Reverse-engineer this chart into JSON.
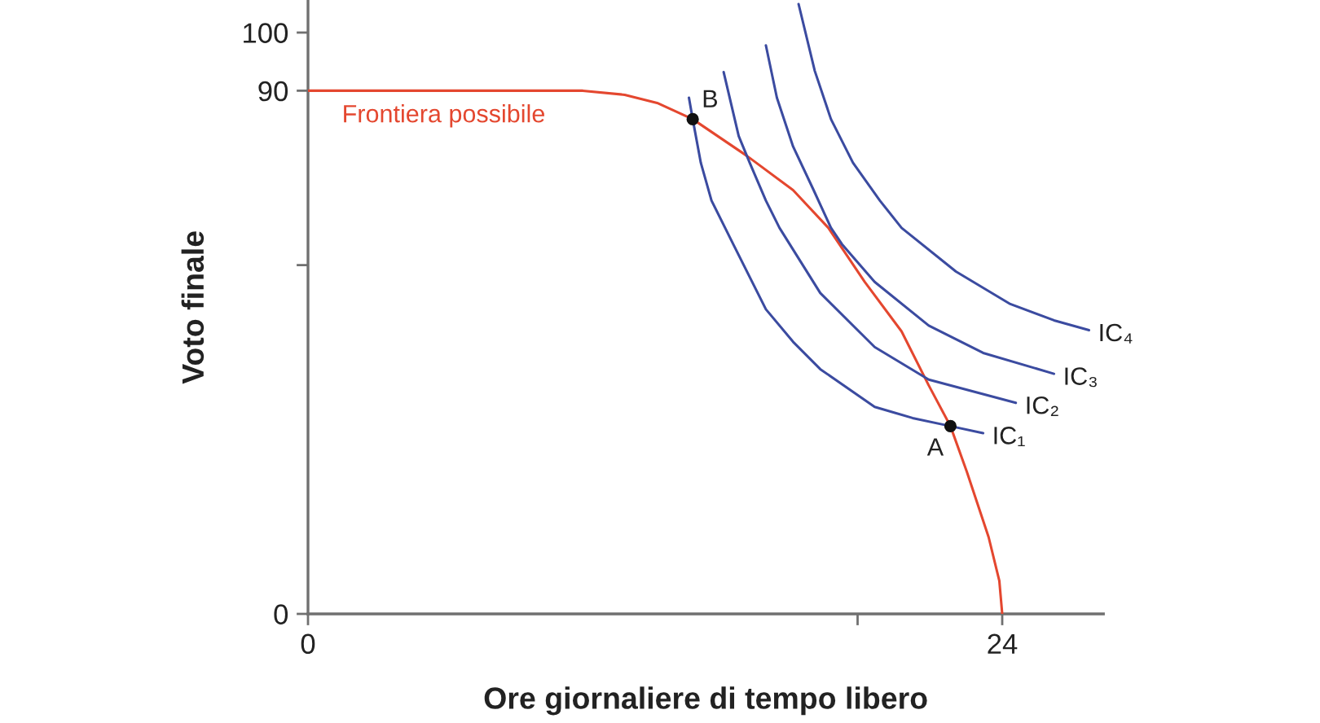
{
  "chart_data": {
    "type": "line",
    "xlabel": "Ore giornaliere di tempo libero",
    "ylabel": "Voto finale",
    "xlim": [
      0,
      27.5
    ],
    "ylim": [
      0,
      105.5
    ],
    "xticks": [
      0,
      {
        "value": 19,
        "label": null
      },
      24
    ],
    "yticks": [
      0,
      {
        "value": 60,
        "label": null
      },
      90,
      100
    ],
    "grid": false,
    "legend": false,
    "marker": "none",
    "line_style": "solid",
    "series": [
      {
        "name": "Frontiera possibile",
        "color": "#e4472f",
        "x": [
          0,
          9.5,
          10.95,
          12.07,
          13.3,
          15.17,
          16.77,
          17.99,
          19.25,
          20.52,
          21.46,
          22.21,
          22.78,
          23.53,
          23.9,
          24
        ],
        "values": [
          90,
          90,
          89.3,
          87.9,
          85.1,
          78.8,
          72.9,
          66.4,
          57.1,
          48.6,
          39.3,
          32.3,
          24.4,
          13.2,
          5.7,
          0
        ]
      },
      {
        "name": "IC₁",
        "color": "#3b4ba0",
        "x": [
          13.17,
          13.3,
          13.58,
          13.95,
          14.42,
          14.7,
          15.83,
          16.77,
          17.71,
          19.59,
          20.9,
          22.21,
          23.34
        ],
        "values": [
          88.8,
          85.1,
          77.6,
          71.1,
          66.4,
          63.6,
          52.4,
          46.8,
          42.1,
          35.6,
          33.7,
          32.3,
          31.1
        ]
      },
      {
        "name": "IC₂",
        "color": "#3b4ba0",
        "x": [
          14.37,
          14.89,
          15.27,
          15.83,
          16.3,
          17.71,
          19.59,
          21.46,
          24.47
        ],
        "values": [
          93.2,
          82.2,
          77.6,
          71.1,
          66.4,
          55.2,
          45.9,
          40.3,
          36.3
        ]
      },
      {
        "name": "IC₃",
        "color": "#3b4ba0",
        "x": [
          15.83,
          16.21,
          16.77,
          17.48,
          18.08,
          18.46,
          19.59,
          21.46,
          23.34,
          25.79
        ],
        "values": [
          97.8,
          88.8,
          80.4,
          72.9,
          66.4,
          63.6,
          57.1,
          49.6,
          44.9,
          41.3
        ]
      },
      {
        "name": "IC₄",
        "color": "#3b4ba0",
        "x": [
          16.96,
          17.52,
          18.08,
          18.84,
          19.77,
          20.52,
          22.4,
          24.28,
          25.79,
          27.0
        ],
        "values": [
          104.9,
          93.4,
          85.1,
          77.6,
          71.1,
          66.4,
          58.9,
          53.3,
          50.5,
          48.8
        ]
      },
      {
        "type": "scatter",
        "color": "#111111",
        "marker": "circle",
        "x": [
          13.3,
          22.21
        ],
        "values": [
          85.1,
          32.3
        ]
      }
    ],
    "annotations": [
      {
        "text": "B",
        "x": 13.3,
        "y": 85.1
      },
      {
        "text": "A",
        "x": 22.21,
        "y": 32.3
      }
    ]
  }
}
